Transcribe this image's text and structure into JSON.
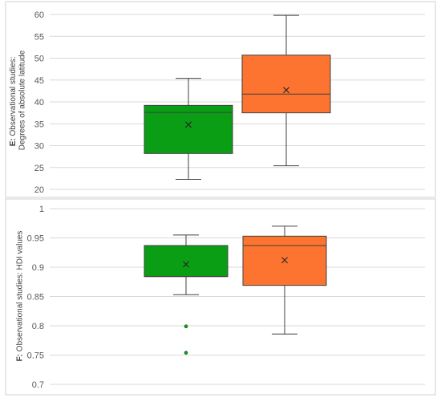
{
  "chart_data": [
    {
      "type": "box",
      "ylabel_prefix": "E:",
      "ylabel_line1": "Observational studies:",
      "ylabel_line2": "Degrees of absolute latitude",
      "ylim": [
        20,
        60
      ],
      "yticks": [
        "20",
        "25",
        "30",
        "35",
        "40",
        "45",
        "50",
        "55",
        "60"
      ],
      "grid": true,
      "series": [
        {
          "color": "#0a9e15",
          "min": 22.3,
          "q1": 28.2,
          "median": 37.6,
          "q3": 39.2,
          "max": 45.4,
          "mean": 34.8,
          "outliers": []
        },
        {
          "color": "#fd7430",
          "min": 25.4,
          "q1": 37.5,
          "median": 41.8,
          "q3": 50.7,
          "max": 59.8,
          "mean": 42.7,
          "outliers": []
        }
      ]
    },
    {
      "type": "box",
      "ylabel_prefix": "F:",
      "ylabel_line1": "Observational studies: HDI values",
      "ylabel_line2": "",
      "ylim": [
        0.7,
        1.0
      ],
      "yticks": [
        "0.7",
        "0.75",
        "0.8",
        "0.85",
        "0.9",
        "0.95",
        "1"
      ],
      "grid": true,
      "series": [
        {
          "color": "#0a9e15",
          "min": 0.853,
          "q1": 0.884,
          "median": 0.884,
          "q3": 0.937,
          "max": 0.955,
          "mean": 0.905,
          "outliers": [
            0.799,
            0.754
          ]
        },
        {
          "color": "#fd7430",
          "min": 0.786,
          "q1": 0.869,
          "median": 0.937,
          "q3": 0.953,
          "max": 0.97,
          "mean": 0.912,
          "outliers": []
        }
      ]
    }
  ]
}
